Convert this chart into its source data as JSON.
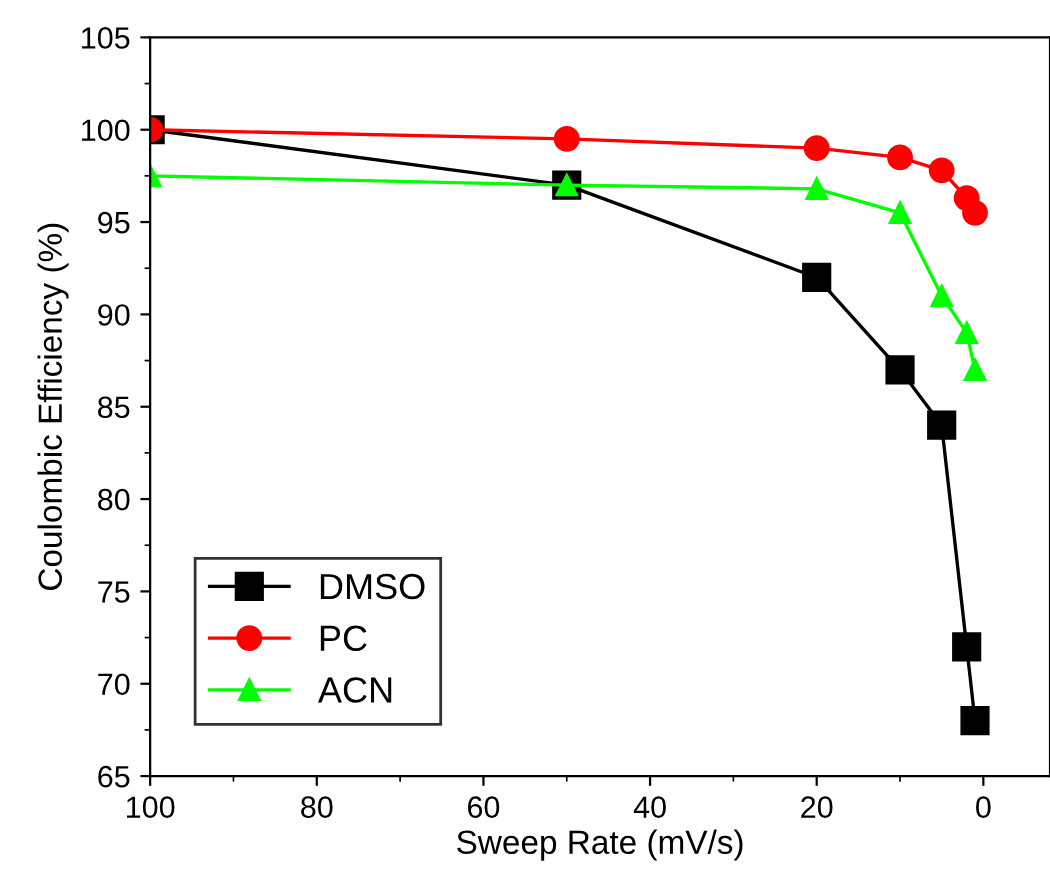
{
  "chart_data": {
    "type": "line",
    "xlabel": "Sweep Rate (mV/s)",
    "ylabel": "Coulombic Efficiency (%)",
    "x": [
      100,
      50,
      20,
      10,
      5,
      2,
      1
    ],
    "xlim": [
      100,
      -8
    ],
    "xticks": [
      100,
      80,
      60,
      40,
      20,
      0
    ],
    "ylim": [
      65,
      105
    ],
    "yticks": [
      65,
      70,
      75,
      80,
      85,
      90,
      95,
      100,
      105
    ],
    "grid": false,
    "legend": "bottom left",
    "series": [
      {
        "name": "DMSO",
        "color": "#000000",
        "marker": "square",
        "values": [
          100,
          97,
          92,
          87,
          84,
          72,
          68
        ]
      },
      {
        "name": "PC",
        "color": "#ff0000",
        "marker": "circle",
        "values": [
          100,
          99.5,
          99,
          98.5,
          97.8,
          96.3,
          95.5
        ]
      },
      {
        "name": "ACN",
        "color": "#00ff00",
        "marker": "triangle",
        "values": [
          97.5,
          97,
          96.8,
          95.5,
          91,
          89,
          87
        ]
      }
    ]
  }
}
